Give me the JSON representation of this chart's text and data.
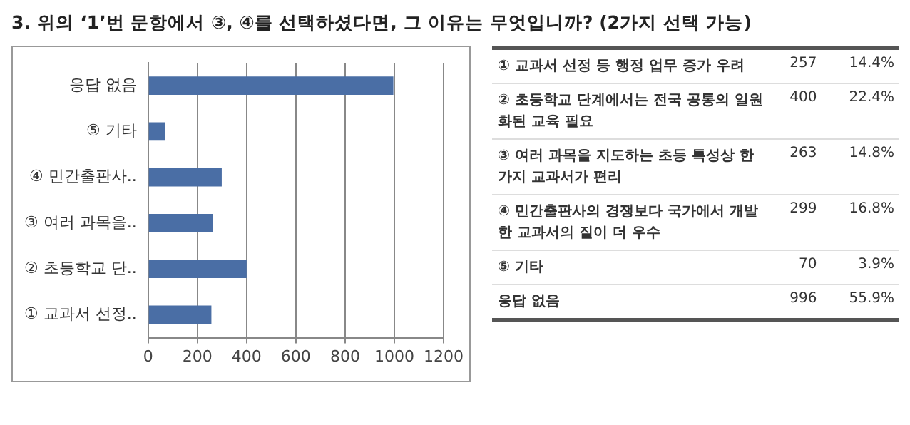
{
  "chart_data": {
    "type": "bar",
    "orientation": "horizontal",
    "title": "3. 위의 ‘1’번 문항에서 ③, ④를 선택하셨다면, 그 이유는 무엇입니까? (2가지 선택 가능)",
    "categories": [
      "응답 없음",
      "⑤ 기타",
      "④ 민간출판사..",
      "③ 여러 과목을..",
      "② 초등학교 단..",
      "① 교과서 선정.."
    ],
    "values": [
      996,
      70,
      299,
      263,
      400,
      257
    ],
    "color": "#4a6ea5",
    "xlim": [
      0,
      1200
    ],
    "xticks": [
      0,
      200,
      400,
      600,
      800,
      1000,
      1200
    ],
    "grid": "x",
    "legend": false,
    "annotations": [
      "① 교과서 선정 등 행정 업무 증가 우려",
      "257",
      "14.4%",
      "② 초등학교 단계에서는 전국 공통의 일원화된 교육 필요",
      "400",
      "22.4%",
      "③ 여러 과목을 지도하는 초등 특성상 한 가지 교과서가 편리",
      "263",
      "14.8%",
      "④ 민간출판사의 경쟁보다 국가에서 개발한 교과서의 질이 더 우수",
      "299",
      "16.8%",
      "⑤ 기타",
      "70",
      "3.9%",
      "응답 없음",
      "996",
      "55.9%"
    ]
  }
}
